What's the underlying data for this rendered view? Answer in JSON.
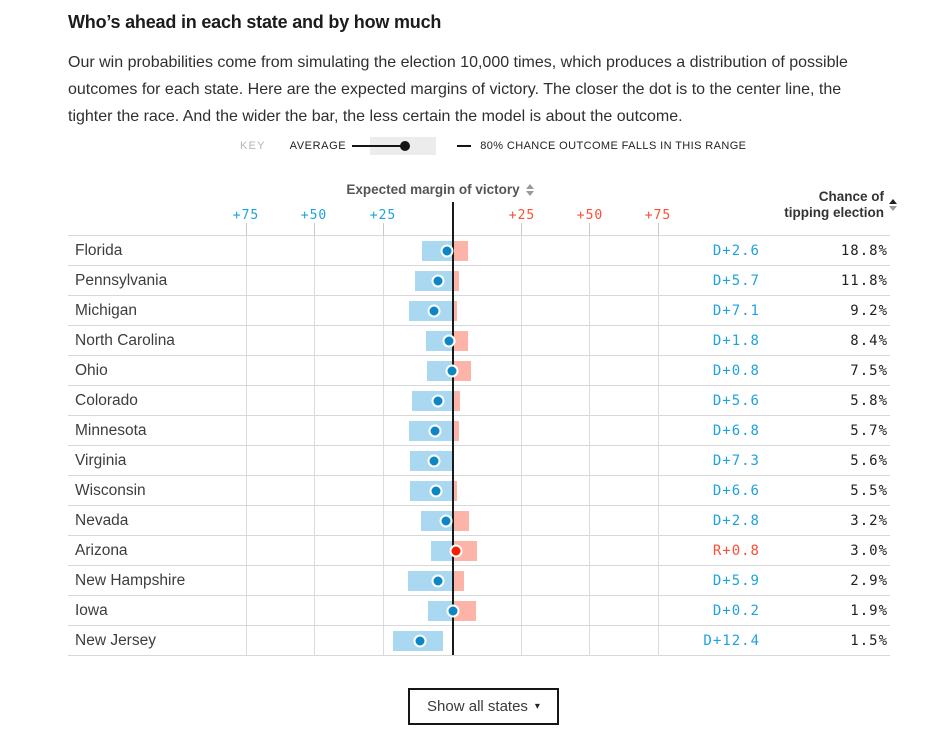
{
  "header": {
    "title": "Who’s ahead in each state and by how much",
    "description": "Our win probabilities come from simulating the election 10,000 times, which produces a distribution of possible outcomes for each state. Here are the expected margins of victory. The closer the dot is to the center line, the tighter the race. And the wider the bar, the less certain the model is about the outcome."
  },
  "key": {
    "label": "KEY",
    "average_label": "AVERAGE",
    "range_label": "80% CHANCE OUTCOME FALLS IN THIS RANGE"
  },
  "footer": {
    "button_label": "Show all states",
    "caret": "▾"
  },
  "colors": {
    "dem_dot": "#0d86c5",
    "dem_bar": "#a9d8f0",
    "dem_text": "#1ea2de",
    "rep_dot": "#f22105",
    "rep_bar": "#fcb3a8",
    "rep_text": "#fb4e35",
    "center_line": "#1a1a1a",
    "gridline": "#dcdcdc"
  },
  "chart_data": {
    "type": "bar",
    "title": "Who’s ahead in each state and by how much",
    "xlabel": "Expected margin of victory",
    "ylabel": "",
    "axis": {
      "margin_header": "Expected margin of victory",
      "chance_header_line1": "Chance of",
      "chance_header_line2": "tipping election",
      "ticks_left": [
        "+75",
        "+50",
        "+25"
      ],
      "ticks_right": [
        "+25",
        "+50",
        "+75"
      ],
      "xlim": [
        -75,
        75
      ],
      "note": "negative = Democratic margin (left, blue), positive = Republican margin (right, red); bar = 80% range, dot = average"
    },
    "legend": [
      "AVERAGE",
      "80% CHANCE OUTCOME FALLS IN THIS RANGE"
    ],
    "states": [
      {
        "name": "Florida",
        "party": "D",
        "margin": -2.6,
        "margin_label": "D+2.6",
        "lo": -11.2,
        "hi": 5.6,
        "chance": 18.8,
        "chance_label": "18.8%"
      },
      {
        "name": "Pennsylvania",
        "party": "D",
        "margin": -5.7,
        "margin_label": "D+5.7",
        "lo": -13.9,
        "hi": 2.3,
        "chance": 11.8,
        "chance_label": "11.8%"
      },
      {
        "name": "Michigan",
        "party": "D",
        "margin": -7.1,
        "margin_label": "D+7.1",
        "lo": -16.0,
        "hi": 1.5,
        "chance": 9.2,
        "chance_label": "9.2%"
      },
      {
        "name": "North Carolina",
        "party": "D",
        "margin": -1.8,
        "margin_label": "D+1.8",
        "lo": -9.9,
        "hi": 5.7,
        "chance": 8.4,
        "chance_label": "8.4%"
      },
      {
        "name": "Ohio",
        "party": "D",
        "margin": -0.8,
        "margin_label": "D+0.8",
        "lo": -9.5,
        "hi": 6.8,
        "chance": 7.5,
        "chance_label": "7.5%"
      },
      {
        "name": "Colorado",
        "party": "D",
        "margin": -5.6,
        "margin_label": "D+5.6",
        "lo": -14.9,
        "hi": 2.6,
        "chance": 5.8,
        "chance_label": "5.8%"
      },
      {
        "name": "Minnesota",
        "party": "D",
        "margin": -6.8,
        "margin_label": "D+6.8",
        "lo": -16.0,
        "hi": 2.3,
        "chance": 5.7,
        "chance_label": "5.7%"
      },
      {
        "name": "Virginia",
        "party": "D",
        "margin": -7.3,
        "margin_label": "D+7.3",
        "lo": -15.6,
        "hi": 0.4,
        "chance": 5.6,
        "chance_label": "5.6%"
      },
      {
        "name": "Wisconsin",
        "party": "D",
        "margin": -6.6,
        "margin_label": "D+6.6",
        "lo": -15.6,
        "hi": 1.5,
        "chance": 5.5,
        "chance_label": "5.5%"
      },
      {
        "name": "Nevada",
        "party": "D",
        "margin": -2.8,
        "margin_label": "D+2.8",
        "lo": -11.6,
        "hi": 6.1,
        "chance": 3.2,
        "chance_label": "3.2%"
      },
      {
        "name": "Arizona",
        "party": "R",
        "margin": 0.8,
        "margin_label": "R+0.8",
        "lo": -8.1,
        "hi": 8.8,
        "chance": 3.0,
        "chance_label": "3.0%"
      },
      {
        "name": "New Hampshire",
        "party": "D",
        "margin": -5.9,
        "margin_label": "D+5.9",
        "lo": -16.5,
        "hi": 4.0,
        "chance": 2.9,
        "chance_label": "2.9%"
      },
      {
        "name": "Iowa",
        "party": "D",
        "margin": -0.2,
        "margin_label": "D+0.2",
        "lo": -9.0,
        "hi": 8.4,
        "chance": 1.9,
        "chance_label": "1.9%"
      },
      {
        "name": "New Jersey",
        "party": "D",
        "margin": -12.4,
        "margin_label": "D+12.4",
        "lo": -21.9,
        "hi": -3.7,
        "chance": 1.5,
        "chance_label": "1.5%"
      }
    ]
  }
}
